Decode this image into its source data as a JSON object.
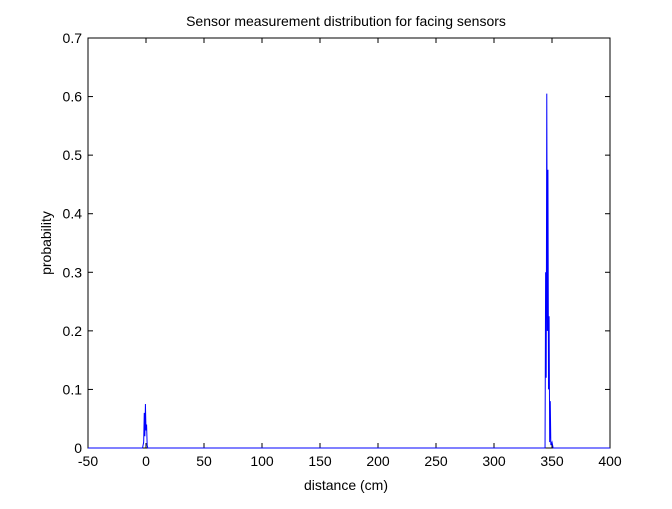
{
  "chart_data": {
    "type": "line",
    "title": "Sensor measurement distribution for facing sensors",
    "xlabel": "distance (cm)",
    "ylabel": "probability",
    "xlim": [
      -50,
      400
    ],
    "ylim": [
      0,
      0.7
    ],
    "x_ticks": [
      -50,
      0,
      50,
      100,
      150,
      200,
      250,
      300,
      350,
      400
    ],
    "y_ticks": [
      0,
      0.1,
      0.2,
      0.3,
      0.4,
      0.5,
      0.6,
      0.7
    ],
    "x_tick_labels": [
      "-50",
      "0",
      "50",
      "100",
      "150",
      "200",
      "250",
      "300",
      "350",
      "400"
    ],
    "y_tick_labels": [
      "0",
      "0.1",
      "0.2",
      "0.3",
      "0.4",
      "0.5",
      "0.6",
      "0.7"
    ],
    "grid": false,
    "series": [
      {
        "color": "#0000ff",
        "x": [
          -50,
          -3,
          -2,
          -1.5,
          -1,
          -0.5,
          0,
          0.5,
          1,
          1.5,
          2,
          3,
          343,
          344,
          344.5,
          345,
          345.5,
          346,
          346.5,
          347,
          347.5,
          348,
          348.5,
          349,
          350,
          351,
          400
        ],
        "y": [
          0,
          0,
          0.01,
          0.06,
          0.02,
          0.075,
          0.03,
          0.04,
          0.005,
          0,
          0,
          0,
          0,
          0,
          0.3,
          0.12,
          0.605,
          0.2,
          0.475,
          0.1,
          0.225,
          0.01,
          0.08,
          0.005,
          0.01,
          0,
          0
        ]
      }
    ]
  }
}
